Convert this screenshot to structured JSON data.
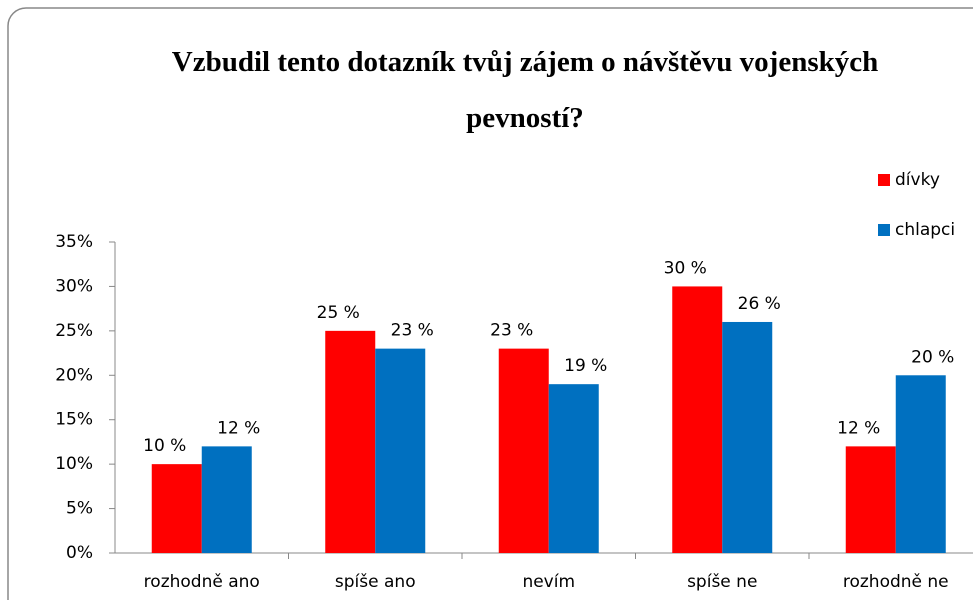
{
  "chart_data": {
    "type": "bar",
    "title": "Vzbudil tento dotazník tvůj zájem o návštěvu vojenských pevností?",
    "categories": [
      "rozhodně ano",
      "spíše ano",
      "nevím",
      "spíše ne",
      "rozhodně ne"
    ],
    "series": [
      {
        "name": "dívky",
        "color": "#ff0000",
        "values": [
          10,
          25,
          23,
          30,
          12
        ],
        "value_labels": [
          "10 %",
          "25 %",
          "23 %",
          "30 %",
          "12 %"
        ]
      },
      {
        "name": "chlapci",
        "color": "#0070c0",
        "values": [
          12,
          23,
          19,
          26,
          20
        ],
        "value_labels": [
          "12 %",
          "23 %",
          "19 %",
          "26 %",
          "20 %"
        ]
      }
    ],
    "ylim": [
      0,
      35
    ],
    "yticks": [
      {
        "value": 0,
        "label": "0%"
      },
      {
        "value": 5,
        "label": "5%"
      },
      {
        "value": 10,
        "label": "10%"
      },
      {
        "value": 15,
        "label": "15%"
      },
      {
        "value": 20,
        "label": "20%"
      },
      {
        "value": 25,
        "label": "25%"
      },
      {
        "value": 30,
        "label": "30%"
      },
      {
        "value": 35,
        "label": "35%"
      }
    ],
    "legend": "right"
  }
}
